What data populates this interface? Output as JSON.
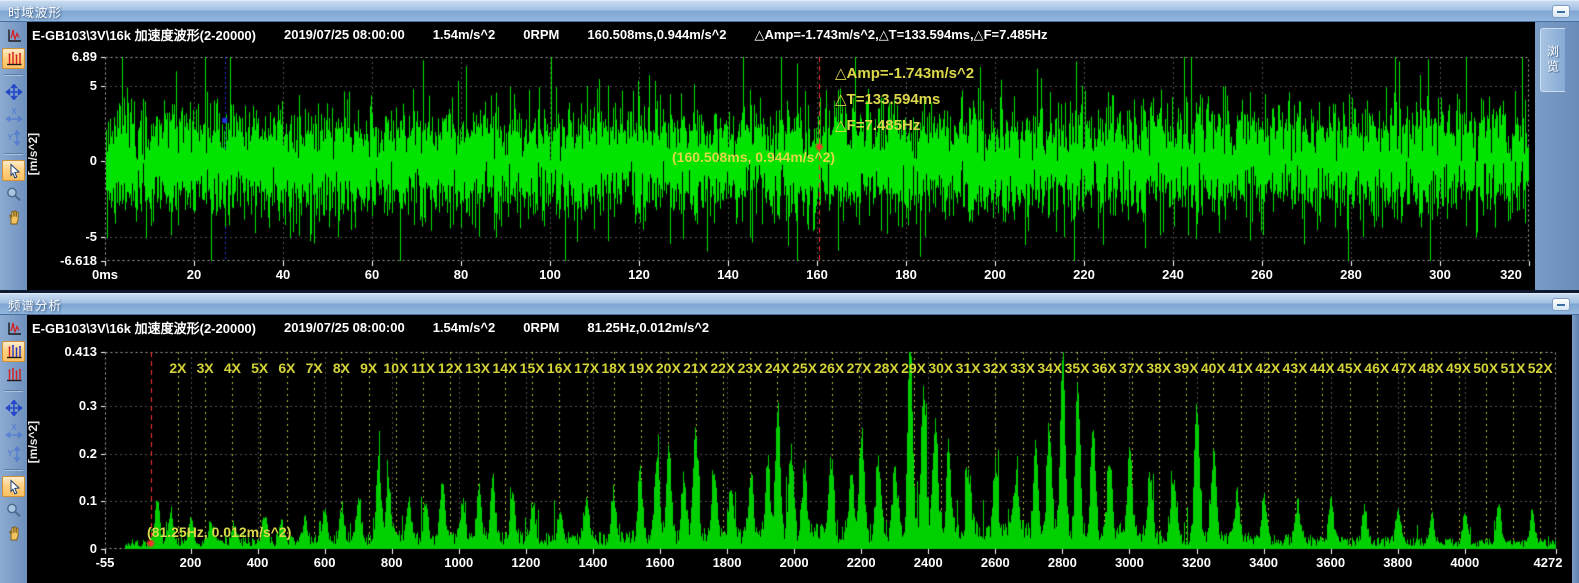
{
  "colors": {
    "waveform": "#00e400",
    "spectrum": "#00cf00",
    "grid": "#4f4f4f",
    "border": "#a8a8a8",
    "harmonic": "#b8b830",
    "annotation": "#dcd84a",
    "cursor_red": "#ff3030",
    "cursor_blue": "#2233dd",
    "plot_bg": "#000000",
    "tick": "#ffffff"
  },
  "panels": [
    {
      "title": "时域波形",
      "dock_tab": "浏览",
      "header": [
        "E-GB103\\3V\\16k 加速度波形(2-20000)",
        "2019/07/25 08:00:00",
        "1.54m/s^2",
        "0RPM",
        "160.508ms,0.944m/s^2",
        "△Amp=-1.743m/s^2,△T=133.594ms,△F=7.485Hz"
      ],
      "toolbar": [
        {
          "icon": "time-waveform",
          "selected": false,
          "disabled": false
        },
        {
          "icon": "spectrum",
          "selected": true,
          "disabled": false
        },
        {
          "icon": "separator"
        },
        {
          "icon": "move",
          "selected": false,
          "disabled": false
        },
        {
          "icon": "x-scale",
          "selected": false,
          "disabled": true
        },
        {
          "icon": "y-scale",
          "selected": false,
          "disabled": true
        },
        {
          "icon": "separator"
        },
        {
          "icon": "cursor",
          "selected": true,
          "disabled": false
        },
        {
          "icon": "magnifier",
          "selected": false,
          "disabled": false
        },
        {
          "icon": "hand",
          "selected": false,
          "disabled": false
        }
      ]
    },
    {
      "title": "频谱分析",
      "header": [
        "E-GB103\\3V\\16k 加速度波形(2-20000)",
        "2019/07/25 08:00:00",
        "1.54m/s^2",
        "0RPM",
        "81.25Hz,0.012m/s^2"
      ],
      "toolbar": [
        {
          "icon": "time-waveform",
          "selected": false,
          "disabled": false
        },
        {
          "icon": "harmonic-spectrum",
          "selected": true,
          "disabled": false
        },
        {
          "icon": "spectrum",
          "selected": false,
          "disabled": false
        },
        {
          "icon": "separator"
        },
        {
          "icon": "move",
          "selected": false,
          "disabled": false
        },
        {
          "icon": "x-scale",
          "selected": false,
          "disabled": true
        },
        {
          "icon": "y-scale",
          "selected": false,
          "disabled": true
        },
        {
          "icon": "separator"
        },
        {
          "icon": "cursor",
          "selected": true,
          "disabled": false
        },
        {
          "icon": "magnifier",
          "selected": false,
          "disabled": false
        },
        {
          "icon": "hand",
          "selected": false,
          "disabled": false
        }
      ]
    }
  ],
  "chart_data": [
    {
      "type": "line",
      "title": "时域波形",
      "ylabel": "[m/s^2]",
      "x_unit": "ms",
      "x_range": [
        0,
        320
      ],
      "y_range": [
        -6.618,
        6.89
      ],
      "x_tick_values": [
        0,
        20,
        40,
        60,
        80,
        100,
        120,
        140,
        160,
        180,
        200,
        220,
        240,
        260,
        280,
        300,
        320
      ],
      "x_tick_labels": [
        "0ms",
        "20",
        "40",
        "60",
        "80",
        "100",
        "120",
        "140",
        "160",
        "180",
        "200",
        "220",
        "240",
        "260",
        "280",
        "300",
        "320"
      ],
      "y_tick_values": [
        6.89,
        5,
        0,
        -5,
        -6.618
      ],
      "y_tick_labels": [
        "6.89",
        "5",
        "0",
        "-5",
        "-6.618"
      ],
      "grid_y_values": [
        5,
        0,
        -5
      ],
      "signal": {
        "kind": "broadband-random-noise",
        "seed": 20190725,
        "sigma": 1.3,
        "spike_prob": 0.018,
        "spike_gain": 2.4,
        "peak_max": 6.89,
        "peak_min": -6.618
      },
      "cursors": {
        "main": {
          "x": 160.508,
          "y": 0.944
        },
        "reference": {
          "x": 26.914,
          "y": 2.687
        }
      },
      "cursor_label": "(160.508ms, 0.944m/s^2)",
      "annotations": {
        "amp": "△Amp=-1.743m/s^2",
        "t": "△T=133.594ms",
        "f": "△F=7.485Hz"
      }
    },
    {
      "type": "line",
      "title": "频谱分析",
      "ylabel": "[m/s^2]",
      "x_unit": "Hz",
      "x_range": [
        -55,
        4272
      ],
      "y_range": [
        0,
        0.413
      ],
      "x_tick_values": [
        -55,
        200,
        400,
        600,
        800,
        1000,
        1200,
        1400,
        1600,
        1800,
        2000,
        2200,
        2400,
        2600,
        2800,
        3000,
        3200,
        3400,
        3600,
        3800,
        4000,
        4272
      ],
      "x_tick_labels": [
        "-55",
        "200",
        "400",
        "600",
        "800",
        "1000",
        "1200",
        "1400",
        "1600",
        "1800",
        "2000",
        "2200",
        "2400",
        "2600",
        "2800",
        "3000",
        "3200",
        "3400",
        "3600",
        "3800",
        "4000",
        "4272"
      ],
      "y_tick_values": [
        0.413,
        0.3,
        0.2,
        0.1,
        0
      ],
      "y_tick_labels": [
        "0.413",
        "0.3",
        "0.2",
        "0.1",
        "0"
      ],
      "grid_y_values": [
        0.3,
        0.2,
        0.1
      ],
      "harmonics": {
        "base_hz": 81.25,
        "labels": [
          "2X",
          "3X",
          "4X",
          "5X",
          "6X",
          "7X",
          "8X",
          "9X",
          "10X",
          "11X",
          "12X",
          "13X",
          "14X",
          "15X",
          "16X",
          "17X",
          "18X",
          "19X",
          "20X",
          "21X",
          "22X",
          "23X",
          "24X",
          "25X",
          "26X",
          "27X",
          "28X",
          "29X",
          "30X",
          "31X",
          "32X",
          "33X",
          "34X",
          "35X",
          "36X",
          "37X",
          "38X",
          "39X",
          "40X",
          "41X",
          "42X",
          "43X",
          "44X",
          "45X",
          "46X",
          "47X",
          "48X",
          "49X",
          "50X",
          "51X",
          "52X"
        ]
      },
      "noise": {
        "seed": 990725,
        "floor_min": 0.004,
        "floor_var": 0.016
      },
      "peaks": [
        [
          100,
          0.09
        ],
        [
          140,
          0.07
        ],
        [
          200,
          0.05
        ],
        [
          260,
          0.045
        ],
        [
          330,
          0.04
        ],
        [
          420,
          0.055
        ],
        [
          470,
          0.04
        ],
        [
          540,
          0.05
        ],
        [
          600,
          0.065
        ],
        [
          650,
          0.07
        ],
        [
          700,
          0.095
        ],
        [
          760,
          0.17
        ],
        [
          790,
          0.12
        ],
        [
          850,
          0.08
        ],
        [
          900,
          0.075
        ],
        [
          950,
          0.115
        ],
        [
          1010,
          0.08
        ],
        [
          1060,
          0.1
        ],
        [
          1100,
          0.13
        ],
        [
          1160,
          0.09
        ],
        [
          1220,
          0.075
        ],
        [
          1300,
          0.06
        ],
        [
          1380,
          0.09
        ],
        [
          1460,
          0.1
        ],
        [
          1540,
          0.145
        ],
        [
          1590,
          0.18
        ],
        [
          1625,
          0.2
        ],
        [
          1670,
          0.13
        ],
        [
          1705,
          0.22
        ],
        [
          1760,
          0.15
        ],
        [
          1810,
          0.11
        ],
        [
          1870,
          0.135
        ],
        [
          1920,
          0.16
        ],
        [
          1950,
          0.27
        ],
        [
          1990,
          0.18
        ],
        [
          2030,
          0.14
        ],
        [
          2110,
          0.15
        ],
        [
          2170,
          0.12
        ],
        [
          2200,
          0.22
        ],
        [
          2250,
          0.16
        ],
        [
          2300,
          0.14
        ],
        [
          2345,
          0.4
        ],
        [
          2385,
          0.31
        ],
        [
          2420,
          0.24
        ],
        [
          2460,
          0.18
        ],
        [
          2520,
          0.12
        ],
        [
          2600,
          0.14
        ],
        [
          2660,
          0.12
        ],
        [
          2720,
          0.18
        ],
        [
          2760,
          0.21
        ],
        [
          2800,
          0.37
        ],
        [
          2845,
          0.31
        ],
        [
          2890,
          0.23
        ],
        [
          2940,
          0.15
        ],
        [
          3000,
          0.19
        ],
        [
          3060,
          0.13
        ],
        [
          3130,
          0.12
        ],
        [
          3200,
          0.28
        ],
        [
          3250,
          0.18
        ],
        [
          3320,
          0.1
        ],
        [
          3400,
          0.095
        ],
        [
          3500,
          0.075
        ],
        [
          3600,
          0.085
        ],
        [
          3700,
          0.07
        ],
        [
          3800,
          0.075
        ],
        [
          3900,
          0.06
        ],
        [
          4000,
          0.065
        ],
        [
          4100,
          0.085
        ],
        [
          4200,
          0.07
        ]
      ],
      "cursor": {
        "x": 81.25,
        "y": 0.012
      },
      "cursor_label": "(81.25Hz, 0.012m/s^2)"
    }
  ]
}
